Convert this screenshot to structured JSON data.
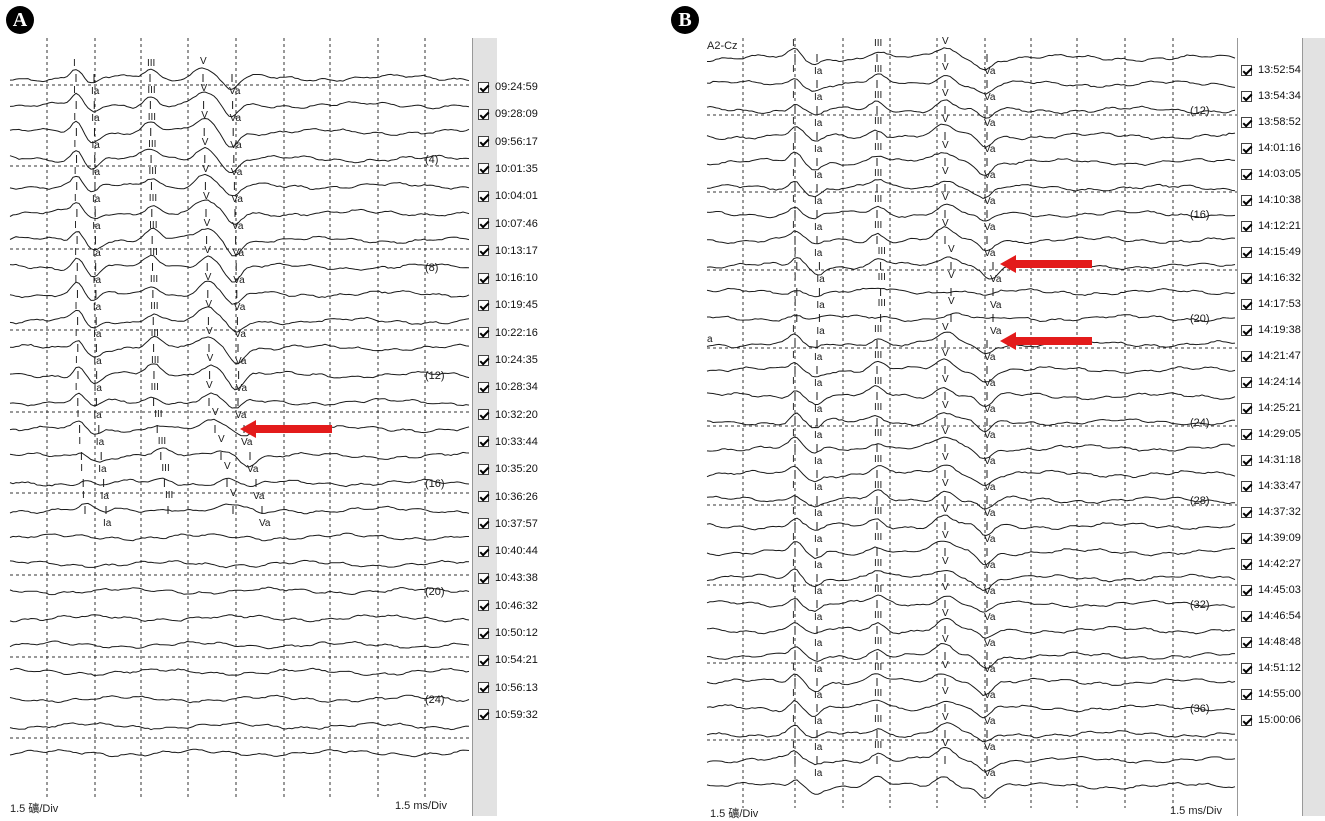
{
  "panel_a": {
    "badge": "A",
    "scale_left": "1.5 礦/Div",
    "scale_right": "1.5 ms/Div",
    "timestamps": [
      "09:24:59",
      "09:28:09",
      "09:56:17",
      "10:01:35",
      "10:04:01",
      "10:07:46",
      "10:13:17",
      "10:16:10",
      "10:19:45",
      "10:22:16",
      "10:24:35",
      "10:28:34",
      "10:32:20",
      "10:33:44",
      "10:35:20",
      "10:36:26",
      "10:37:57",
      "10:40:44",
      "10:43:38",
      "10:46:32",
      "10:50:12",
      "10:54:21",
      "10:56:13",
      "10:59:32"
    ],
    "counters": [
      "(4)",
      "(8)",
      "(12)",
      "(16)",
      "(20)",
      "(24)"
    ],
    "wave_labels": [
      "I",
      "Ia",
      "III",
      "V",
      "Va"
    ]
  },
  "panel_b": {
    "badge": "B",
    "channel": "A2-Cz",
    "scale_left": "1.5 礦/Div",
    "scale_right": "1.5 ms/Div",
    "timestamps": [
      "13:52:54",
      "13:54:34",
      "13:58:52",
      "14:01:16",
      "14:03:05",
      "14:10:38",
      "14:12:21",
      "14:15:49",
      "14:16:32",
      "14:17:53",
      "14:19:38",
      "14:21:47",
      "14:24:14",
      "14:25:21",
      "14:29:05",
      "14:31:18",
      "14:33:47",
      "14:37:32",
      "14:39:09",
      "14:42:27",
      "14:45:03",
      "14:46:54",
      "14:48:48",
      "14:51:12",
      "14:55:00",
      "15:00:06"
    ],
    "counters": [
      "(12)",
      "(16)",
      "(20)",
      "(24)",
      "(28)",
      "(32)",
      "(36)"
    ],
    "wave_labels": [
      "I",
      "Ia",
      "III",
      "V",
      "Va"
    ],
    "partial_label": "a"
  },
  "colors": {
    "arrow": "#e31b1b",
    "trace": "#1a1a1a",
    "grid": "#333333",
    "strip": "#e2e2e2"
  }
}
